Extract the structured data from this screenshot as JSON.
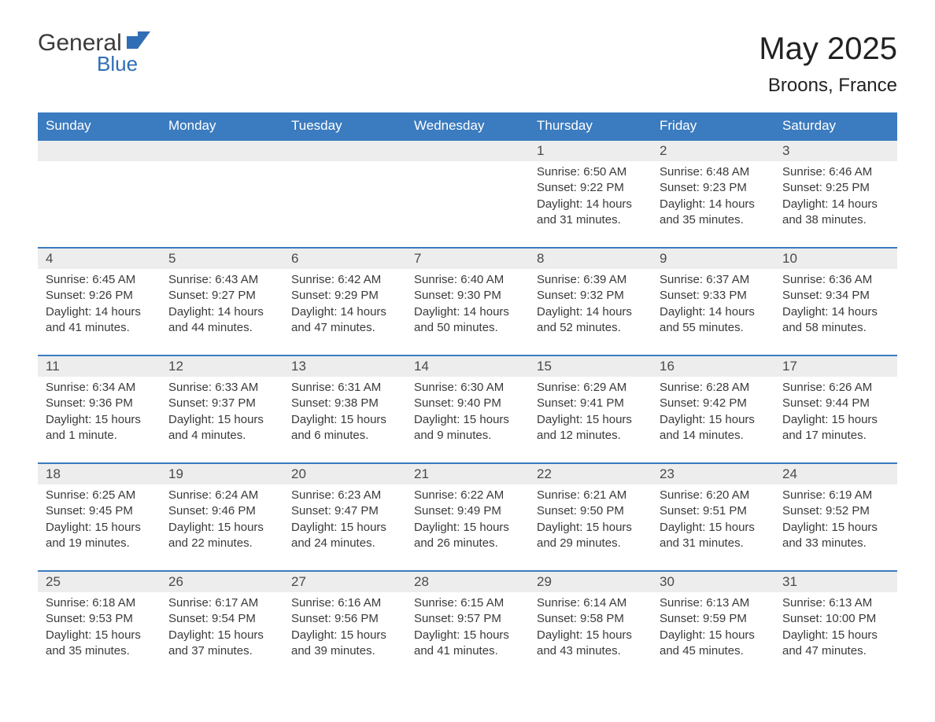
{
  "brand": {
    "name_part1": "General",
    "name_part2": "Blue",
    "icon_color": "#2f6eb5",
    "text_color": "#3a3a3a"
  },
  "header": {
    "month_title": "May 2025",
    "location": "Broons, France"
  },
  "calendar": {
    "header_bg": "#3b7bbf",
    "header_fg": "#ffffff",
    "border_color": "#3b7bbf",
    "daybar_bg": "#ededed",
    "text_color": "#3a3a3a",
    "columns": [
      "Sunday",
      "Monday",
      "Tuesday",
      "Wednesday",
      "Thursday",
      "Friday",
      "Saturday"
    ],
    "leading_empty": 4,
    "days": [
      {
        "n": "1",
        "sunrise": "6:50 AM",
        "sunset": "9:22 PM",
        "daylight": "14 hours and 31 minutes."
      },
      {
        "n": "2",
        "sunrise": "6:48 AM",
        "sunset": "9:23 PM",
        "daylight": "14 hours and 35 minutes."
      },
      {
        "n": "3",
        "sunrise": "6:46 AM",
        "sunset": "9:25 PM",
        "daylight": "14 hours and 38 minutes."
      },
      {
        "n": "4",
        "sunrise": "6:45 AM",
        "sunset": "9:26 PM",
        "daylight": "14 hours and 41 minutes."
      },
      {
        "n": "5",
        "sunrise": "6:43 AM",
        "sunset": "9:27 PM",
        "daylight": "14 hours and 44 minutes."
      },
      {
        "n": "6",
        "sunrise": "6:42 AM",
        "sunset": "9:29 PM",
        "daylight": "14 hours and 47 minutes."
      },
      {
        "n": "7",
        "sunrise": "6:40 AM",
        "sunset": "9:30 PM",
        "daylight": "14 hours and 50 minutes."
      },
      {
        "n": "8",
        "sunrise": "6:39 AM",
        "sunset": "9:32 PM",
        "daylight": "14 hours and 52 minutes."
      },
      {
        "n": "9",
        "sunrise": "6:37 AM",
        "sunset": "9:33 PM",
        "daylight": "14 hours and 55 minutes."
      },
      {
        "n": "10",
        "sunrise": "6:36 AM",
        "sunset": "9:34 PM",
        "daylight": "14 hours and 58 minutes."
      },
      {
        "n": "11",
        "sunrise": "6:34 AM",
        "sunset": "9:36 PM",
        "daylight": "15 hours and 1 minute."
      },
      {
        "n": "12",
        "sunrise": "6:33 AM",
        "sunset": "9:37 PM",
        "daylight": "15 hours and 4 minutes."
      },
      {
        "n": "13",
        "sunrise": "6:31 AM",
        "sunset": "9:38 PM",
        "daylight": "15 hours and 6 minutes."
      },
      {
        "n": "14",
        "sunrise": "6:30 AM",
        "sunset": "9:40 PM",
        "daylight": "15 hours and 9 minutes."
      },
      {
        "n": "15",
        "sunrise": "6:29 AM",
        "sunset": "9:41 PM",
        "daylight": "15 hours and 12 minutes."
      },
      {
        "n": "16",
        "sunrise": "6:28 AM",
        "sunset": "9:42 PM",
        "daylight": "15 hours and 14 minutes."
      },
      {
        "n": "17",
        "sunrise": "6:26 AM",
        "sunset": "9:44 PM",
        "daylight": "15 hours and 17 minutes."
      },
      {
        "n": "18",
        "sunrise": "6:25 AM",
        "sunset": "9:45 PM",
        "daylight": "15 hours and 19 minutes."
      },
      {
        "n": "19",
        "sunrise": "6:24 AM",
        "sunset": "9:46 PM",
        "daylight": "15 hours and 22 minutes."
      },
      {
        "n": "20",
        "sunrise": "6:23 AM",
        "sunset": "9:47 PM",
        "daylight": "15 hours and 24 minutes."
      },
      {
        "n": "21",
        "sunrise": "6:22 AM",
        "sunset": "9:49 PM",
        "daylight": "15 hours and 26 minutes."
      },
      {
        "n": "22",
        "sunrise": "6:21 AM",
        "sunset": "9:50 PM",
        "daylight": "15 hours and 29 minutes."
      },
      {
        "n": "23",
        "sunrise": "6:20 AM",
        "sunset": "9:51 PM",
        "daylight": "15 hours and 31 minutes."
      },
      {
        "n": "24",
        "sunrise": "6:19 AM",
        "sunset": "9:52 PM",
        "daylight": "15 hours and 33 minutes."
      },
      {
        "n": "25",
        "sunrise": "6:18 AM",
        "sunset": "9:53 PM",
        "daylight": "15 hours and 35 minutes."
      },
      {
        "n": "26",
        "sunrise": "6:17 AM",
        "sunset": "9:54 PM",
        "daylight": "15 hours and 37 minutes."
      },
      {
        "n": "27",
        "sunrise": "6:16 AM",
        "sunset": "9:56 PM",
        "daylight": "15 hours and 39 minutes."
      },
      {
        "n": "28",
        "sunrise": "6:15 AM",
        "sunset": "9:57 PM",
        "daylight": "15 hours and 41 minutes."
      },
      {
        "n": "29",
        "sunrise": "6:14 AM",
        "sunset": "9:58 PM",
        "daylight": "15 hours and 43 minutes."
      },
      {
        "n": "30",
        "sunrise": "6:13 AM",
        "sunset": "9:59 PM",
        "daylight": "15 hours and 45 minutes."
      },
      {
        "n": "31",
        "sunrise": "6:13 AM",
        "sunset": "10:00 PM",
        "daylight": "15 hours and 47 minutes."
      }
    ],
    "labels": {
      "sunrise": "Sunrise: ",
      "sunset": "Sunset: ",
      "daylight": "Daylight: "
    }
  }
}
